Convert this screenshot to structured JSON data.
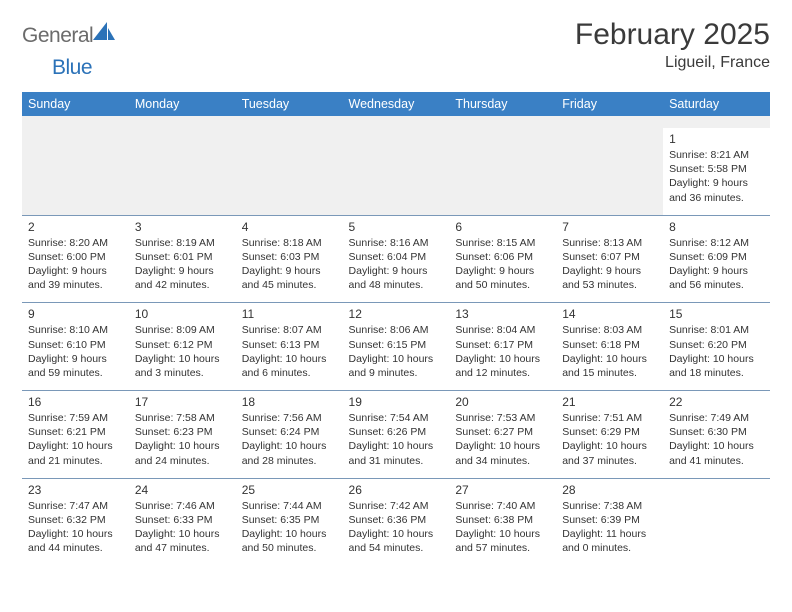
{
  "logo": {
    "word1": "General",
    "word2": "Blue"
  },
  "title": "February 2025",
  "location": "Ligueil, France",
  "colors": {
    "header_bg": "#3a80c5",
    "header_text": "#ffffff",
    "rule": "#7a98b8",
    "blank_bg": "#f0f0f0",
    "logo_gray": "#6b6b6b",
    "logo_blue": "#2b72b8"
  },
  "day_names": [
    "Sunday",
    "Monday",
    "Tuesday",
    "Wednesday",
    "Thursday",
    "Friday",
    "Saturday"
  ],
  "weeks": [
    [
      {
        "n": "",
        "sr": "",
        "ss": "",
        "dl": ""
      },
      {
        "n": "",
        "sr": "",
        "ss": "",
        "dl": ""
      },
      {
        "n": "",
        "sr": "",
        "ss": "",
        "dl": ""
      },
      {
        "n": "",
        "sr": "",
        "ss": "",
        "dl": ""
      },
      {
        "n": "",
        "sr": "",
        "ss": "",
        "dl": ""
      },
      {
        "n": "",
        "sr": "",
        "ss": "",
        "dl": ""
      },
      {
        "n": "1",
        "sr": "Sunrise: 8:21 AM",
        "ss": "Sunset: 5:58 PM",
        "dl": "Daylight: 9 hours and 36 minutes."
      }
    ],
    [
      {
        "n": "2",
        "sr": "Sunrise: 8:20 AM",
        "ss": "Sunset: 6:00 PM",
        "dl": "Daylight: 9 hours and 39 minutes."
      },
      {
        "n": "3",
        "sr": "Sunrise: 8:19 AM",
        "ss": "Sunset: 6:01 PM",
        "dl": "Daylight: 9 hours and 42 minutes."
      },
      {
        "n": "4",
        "sr": "Sunrise: 8:18 AM",
        "ss": "Sunset: 6:03 PM",
        "dl": "Daylight: 9 hours and 45 minutes."
      },
      {
        "n": "5",
        "sr": "Sunrise: 8:16 AM",
        "ss": "Sunset: 6:04 PM",
        "dl": "Daylight: 9 hours and 48 minutes."
      },
      {
        "n": "6",
        "sr": "Sunrise: 8:15 AM",
        "ss": "Sunset: 6:06 PM",
        "dl": "Daylight: 9 hours and 50 minutes."
      },
      {
        "n": "7",
        "sr": "Sunrise: 8:13 AM",
        "ss": "Sunset: 6:07 PM",
        "dl": "Daylight: 9 hours and 53 minutes."
      },
      {
        "n": "8",
        "sr": "Sunrise: 8:12 AM",
        "ss": "Sunset: 6:09 PM",
        "dl": "Daylight: 9 hours and 56 minutes."
      }
    ],
    [
      {
        "n": "9",
        "sr": "Sunrise: 8:10 AM",
        "ss": "Sunset: 6:10 PM",
        "dl": "Daylight: 9 hours and 59 minutes."
      },
      {
        "n": "10",
        "sr": "Sunrise: 8:09 AM",
        "ss": "Sunset: 6:12 PM",
        "dl": "Daylight: 10 hours and 3 minutes."
      },
      {
        "n": "11",
        "sr": "Sunrise: 8:07 AM",
        "ss": "Sunset: 6:13 PM",
        "dl": "Daylight: 10 hours and 6 minutes."
      },
      {
        "n": "12",
        "sr": "Sunrise: 8:06 AM",
        "ss": "Sunset: 6:15 PM",
        "dl": "Daylight: 10 hours and 9 minutes."
      },
      {
        "n": "13",
        "sr": "Sunrise: 8:04 AM",
        "ss": "Sunset: 6:17 PM",
        "dl": "Daylight: 10 hours and 12 minutes."
      },
      {
        "n": "14",
        "sr": "Sunrise: 8:03 AM",
        "ss": "Sunset: 6:18 PM",
        "dl": "Daylight: 10 hours and 15 minutes."
      },
      {
        "n": "15",
        "sr": "Sunrise: 8:01 AM",
        "ss": "Sunset: 6:20 PM",
        "dl": "Daylight: 10 hours and 18 minutes."
      }
    ],
    [
      {
        "n": "16",
        "sr": "Sunrise: 7:59 AM",
        "ss": "Sunset: 6:21 PM",
        "dl": "Daylight: 10 hours and 21 minutes."
      },
      {
        "n": "17",
        "sr": "Sunrise: 7:58 AM",
        "ss": "Sunset: 6:23 PM",
        "dl": "Daylight: 10 hours and 24 minutes."
      },
      {
        "n": "18",
        "sr": "Sunrise: 7:56 AM",
        "ss": "Sunset: 6:24 PM",
        "dl": "Daylight: 10 hours and 28 minutes."
      },
      {
        "n": "19",
        "sr": "Sunrise: 7:54 AM",
        "ss": "Sunset: 6:26 PM",
        "dl": "Daylight: 10 hours and 31 minutes."
      },
      {
        "n": "20",
        "sr": "Sunrise: 7:53 AM",
        "ss": "Sunset: 6:27 PM",
        "dl": "Daylight: 10 hours and 34 minutes."
      },
      {
        "n": "21",
        "sr": "Sunrise: 7:51 AM",
        "ss": "Sunset: 6:29 PM",
        "dl": "Daylight: 10 hours and 37 minutes."
      },
      {
        "n": "22",
        "sr": "Sunrise: 7:49 AM",
        "ss": "Sunset: 6:30 PM",
        "dl": "Daylight: 10 hours and 41 minutes."
      }
    ],
    [
      {
        "n": "23",
        "sr": "Sunrise: 7:47 AM",
        "ss": "Sunset: 6:32 PM",
        "dl": "Daylight: 10 hours and 44 minutes."
      },
      {
        "n": "24",
        "sr": "Sunrise: 7:46 AM",
        "ss": "Sunset: 6:33 PM",
        "dl": "Daylight: 10 hours and 47 minutes."
      },
      {
        "n": "25",
        "sr": "Sunrise: 7:44 AM",
        "ss": "Sunset: 6:35 PM",
        "dl": "Daylight: 10 hours and 50 minutes."
      },
      {
        "n": "26",
        "sr": "Sunrise: 7:42 AM",
        "ss": "Sunset: 6:36 PM",
        "dl": "Daylight: 10 hours and 54 minutes."
      },
      {
        "n": "27",
        "sr": "Sunrise: 7:40 AM",
        "ss": "Sunset: 6:38 PM",
        "dl": "Daylight: 10 hours and 57 minutes."
      },
      {
        "n": "28",
        "sr": "Sunrise: 7:38 AM",
        "ss": "Sunset: 6:39 PM",
        "dl": "Daylight: 11 hours and 0 minutes."
      },
      {
        "n": "",
        "sr": "",
        "ss": "",
        "dl": ""
      }
    ]
  ]
}
